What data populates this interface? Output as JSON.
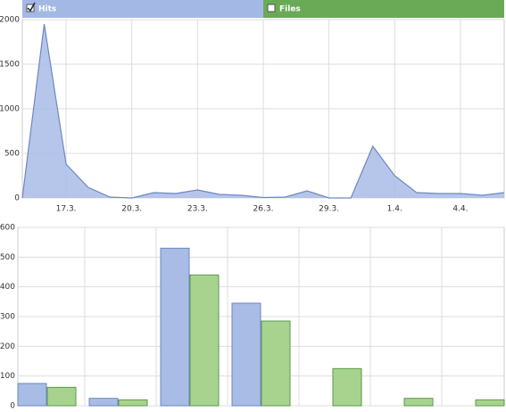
{
  "chart_data": [
    {
      "type": "area",
      "legend": [
        {
          "name": "Hits",
          "color": "#a3b8e4",
          "checked": true
        },
        {
          "name": "Files",
          "color": "#6aaa57",
          "checked": false
        }
      ],
      "categories": [
        null,
        null,
        "17.3.",
        null,
        null,
        "20.3.",
        null,
        null,
        "23.3.",
        null,
        null,
        "26.3.",
        null,
        null,
        "29.3.",
        null,
        null,
        "1.4.",
        null,
        null,
        "4.4.",
        null,
        null
      ],
      "series": [
        {
          "name": "Hits",
          "color": "#a9bce6",
          "values": [
            0,
            1950,
            380,
            120,
            10,
            0,
            60,
            50,
            90,
            40,
            30,
            5,
            10,
            80,
            0,
            0,
            580,
            250,
            60,
            50,
            50,
            30,
            60
          ]
        }
      ],
      "ylim": [
        0,
        2000
      ],
      "yticks": [
        0,
        500,
        1000,
        1500,
        2000
      ],
      "grid": true
    },
    {
      "type": "bar",
      "categories": [
        null,
        null,
        null,
        null,
        null,
        null,
        null
      ],
      "series": [
        {
          "name": "Hits",
          "color": "#a9bce6",
          "values": [
            75,
            25,
            530,
            345,
            0,
            0,
            0
          ]
        },
        {
          "name": "Files",
          "color": "#a8d38f",
          "values": [
            62,
            20,
            440,
            285,
            125,
            25,
            20
          ]
        }
      ],
      "ylim": [
        0,
        600
      ],
      "yticks": [
        0,
        100,
        200,
        300,
        400,
        500,
        600
      ],
      "grid": true
    }
  ]
}
